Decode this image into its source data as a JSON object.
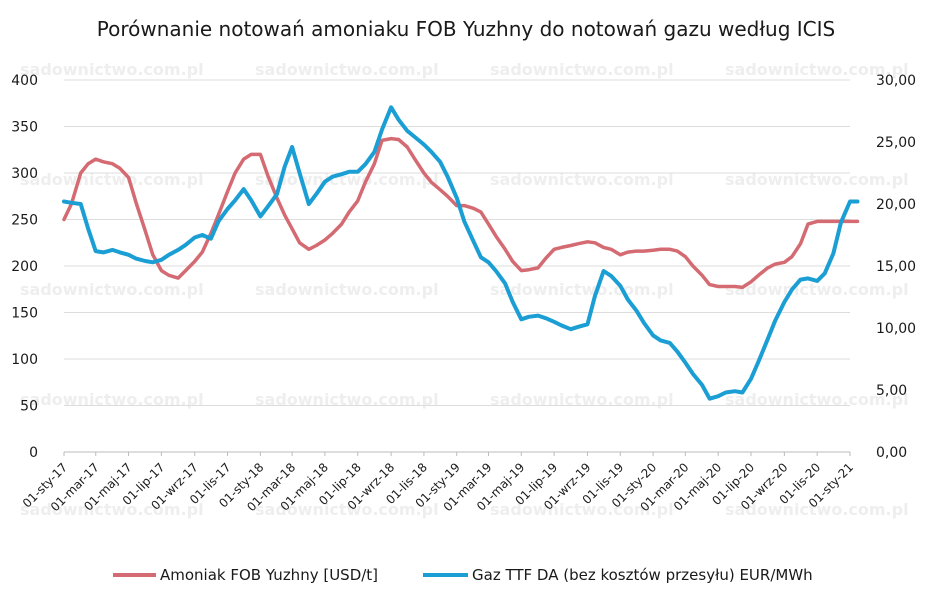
{
  "chart_data": {
    "type": "line",
    "title": "Porównanie notowań amoniaku FOB Yuzhny do notowań gazu według ICIS",
    "watermark": "sadownictwo.com.pl",
    "x_tick_labels": [
      "01-sty-17",
      "01-mar-17",
      "01-maj-17",
      "01-lip-17",
      "01-wrz-17",
      "01-lis-17",
      "01-sty-18",
      "01-mar-18",
      "01-maj-18",
      "01-lip-18",
      "01-wrz-18",
      "01-lis-18",
      "01-sty-19",
      "01-mar-19",
      "01-maj-19",
      "01-lip-19",
      "01-wrz-19",
      "01-lis-19",
      "01-sty-20",
      "01-mar-20",
      "01-maj-20",
      "01-lip-20",
      "01-wrz-20",
      "01-lis-20",
      "01-sty-21"
    ],
    "y_left": {
      "ylim": [
        0,
        400
      ],
      "ticks": [
        "0",
        "50",
        "100",
        "150",
        "200",
        "250",
        "300",
        "350",
        "400"
      ]
    },
    "y_right": {
      "ylim": [
        0,
        30
      ],
      "ticks": [
        "0,00",
        "5,00",
        "10,00",
        "15,00",
        "20,00",
        "25,00",
        "30,00"
      ]
    },
    "grid": true,
    "legend_position": "bottom",
    "series": [
      {
        "name": "Amoniak FOB Yuzhny [USD/t]",
        "axis": "left",
        "color": "#d46a72",
        "x": [
          "01-sty-17",
          "15-sty-17",
          "01-lut-17",
          "15-lut-17",
          "01-mar-17",
          "15-mar-17",
          "01-kwi-17",
          "15-kwi-17",
          "01-maj-17",
          "15-maj-17",
          "01-cze-17",
          "15-cze-17",
          "01-lip-17",
          "15-lip-17",
          "01-sie-17",
          "15-sie-17",
          "01-wrz-17",
          "15-wrz-17",
          "01-paź-17",
          "15-paź-17",
          "01-lis-17",
          "15-lis-17",
          "01-gru-17",
          "15-gru-17",
          "01-sty-18",
          "15-sty-18",
          "01-lut-18",
          "15-lut-18",
          "01-mar-18",
          "15-mar-18",
          "01-kwi-18",
          "15-kwi-18",
          "01-maj-18",
          "15-maj-18",
          "01-cze-18",
          "15-cze-18",
          "01-lip-18",
          "15-lip-18",
          "01-sie-18",
          "15-sie-18",
          "01-wrz-18",
          "15-wrz-18",
          "01-paź-18",
          "15-paź-18",
          "01-lis-18",
          "15-lis-18",
          "01-gru-18",
          "15-gru-18",
          "01-sty-19",
          "15-sty-19",
          "01-lut-19",
          "15-lut-19",
          "01-mar-19",
          "15-mar-19",
          "01-kwi-19",
          "15-kwi-19",
          "01-maj-19",
          "15-maj-19",
          "01-cze-19",
          "15-cze-19",
          "01-lip-19",
          "15-lip-19",
          "01-sie-19",
          "15-sie-19",
          "01-wrz-19",
          "15-wrz-19",
          "01-paź-19",
          "15-paź-19",
          "01-lis-19",
          "15-lis-19",
          "01-gru-19",
          "15-gru-19",
          "01-sty-20",
          "15-sty-20",
          "01-lut-20",
          "15-lut-20",
          "01-mar-20",
          "15-mar-20",
          "01-kwi-20",
          "15-kwi-20",
          "01-maj-20",
          "15-maj-20",
          "01-cze-20",
          "15-cze-20",
          "01-lip-20",
          "15-lip-20",
          "01-sie-20",
          "15-sie-20",
          "01-wrz-20",
          "15-wrz-20",
          "01-paź-20",
          "15-paź-20",
          "01-lis-20",
          "15-lis-20",
          "01-gru-20",
          "15-gru-20",
          "01-sty-21",
          "15-sty-21"
        ],
        "values": [
          250,
          267,
          300,
          310,
          315,
          312,
          310,
          305,
          295,
          268,
          238,
          212,
          195,
          190,
          187,
          195,
          205,
          215,
          235,
          255,
          280,
          300,
          315,
          320,
          320,
          297,
          273,
          255,
          240,
          225,
          218,
          222,
          228,
          235,
          245,
          258,
          270,
          290,
          310,
          335,
          337,
          336,
          328,
          315,
          300,
          290,
          282,
          275,
          265,
          265,
          262,
          258,
          245,
          232,
          218,
          205,
          195,
          196,
          198,
          208,
          218,
          220,
          222,
          224,
          226,
          225,
          220,
          218,
          212,
          215,
          216,
          216,
          217,
          218,
          218,
          216,
          210,
          200,
          190,
          180,
          178,
          178,
          178,
          177,
          183,
          190,
          198,
          202,
          204,
          210,
          224,
          245,
          248,
          248,
          248,
          248,
          248,
          248
        ]
      },
      {
        "name": "Gaz TTF DA (bez kosztów przesyłu) EUR/MWh",
        "axis": "right",
        "color": "#1a9ed4",
        "x": [
          "01-sty-17",
          "15-sty-17",
          "01-lut-17",
          "15-lut-17",
          "01-mar-17",
          "15-mar-17",
          "01-kwi-17",
          "15-kwi-17",
          "01-maj-17",
          "15-maj-17",
          "01-cze-17",
          "15-cze-17",
          "01-lip-17",
          "15-lip-17",
          "01-sie-17",
          "15-sie-17",
          "01-wrz-17",
          "15-wrz-17",
          "01-paź-17",
          "15-paź-17",
          "01-lis-17",
          "15-lis-17",
          "01-gru-17",
          "15-gru-17",
          "01-sty-18",
          "15-sty-18",
          "01-lut-18",
          "15-lut-18",
          "01-mar-18",
          "15-mar-18",
          "01-kwi-18",
          "15-kwi-18",
          "01-maj-18",
          "15-maj-18",
          "01-cze-18",
          "15-cze-18",
          "01-lip-18",
          "15-lip-18",
          "01-sie-18",
          "15-sie-18",
          "01-wrz-18",
          "15-wrz-18",
          "01-paź-18",
          "15-paź-18",
          "01-lis-18",
          "15-lis-18",
          "01-gru-18",
          "15-gru-18",
          "01-sty-19",
          "15-sty-19",
          "01-lut-19",
          "15-lut-19",
          "01-mar-19",
          "15-mar-19",
          "01-kwi-19",
          "15-kwi-19",
          "01-maj-19",
          "15-maj-19",
          "01-cze-19",
          "15-cze-19",
          "01-lip-19",
          "15-lip-19",
          "01-sie-19",
          "15-sie-19",
          "01-wrz-19",
          "15-wrz-19",
          "01-paź-19",
          "15-paź-19",
          "01-lis-19",
          "15-lis-19",
          "01-gru-19",
          "15-gru-19",
          "01-sty-20",
          "15-sty-20",
          "01-lut-20",
          "15-lut-20",
          "01-mar-20",
          "15-mar-20",
          "01-kwi-20",
          "15-kwi-20",
          "01-maj-20",
          "15-maj-20",
          "01-cze-20",
          "15-cze-20",
          "01-lip-20",
          "15-lip-20",
          "01-sie-20",
          "15-sie-20",
          "01-wrz-20",
          "15-wrz-20",
          "01-paź-20",
          "15-paź-20",
          "01-lis-20",
          "15-lis-20",
          "01-gru-20",
          "15-gru-20",
          "01-sty-21",
          "15-sty-21"
        ],
        "values": [
          20.2,
          20.1,
          20.0,
          18.0,
          16.2,
          16.1,
          16.3,
          16.1,
          15.9,
          15.6,
          15.4,
          15.3,
          15.5,
          15.9,
          16.3,
          16.7,
          17.3,
          17.5,
          17.2,
          18.6,
          19.6,
          20.3,
          21.2,
          20.3,
          19.0,
          19.8,
          20.8,
          23.0,
          24.6,
          22.5,
          20.0,
          20.8,
          21.8,
          22.2,
          22.4,
          22.6,
          22.6,
          23.2,
          24.2,
          26.0,
          27.8,
          26.8,
          25.9,
          25.4,
          24.8,
          24.2,
          23.4,
          22.2,
          20.5,
          18.6,
          17.0,
          15.7,
          15.3,
          14.6,
          13.6,
          12.1,
          10.7,
          10.9,
          11.0,
          10.8,
          10.5,
          10.2,
          9.9,
          10.1,
          10.3,
          12.6,
          14.6,
          14.2,
          13.4,
          12.3,
          11.4,
          10.4,
          9.4,
          9.0,
          8.8,
          8.1,
          7.2,
          6.3,
          5.4,
          4.3,
          4.5,
          4.8,
          4.9,
          4.8,
          5.9,
          7.3,
          9.1,
          10.6,
          12.1,
          13.1,
          13.9,
          14.0,
          13.8,
          14.4,
          16.0,
          18.5,
          20.2,
          20.2
        ]
      }
    ]
  }
}
